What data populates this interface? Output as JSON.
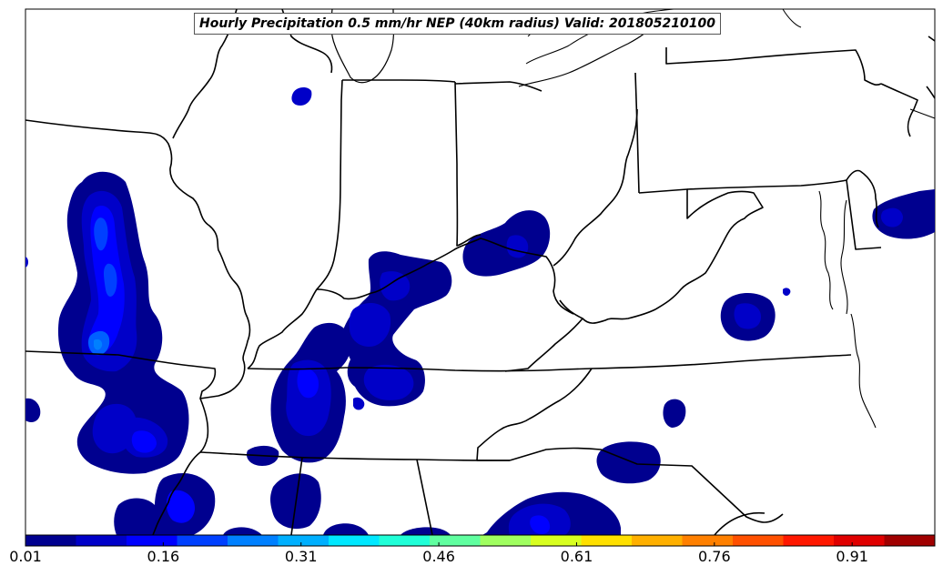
{
  "map": {
    "title": "Hourly Precipitation 0.5 mm/hr NEP (40km radius) Valid: 201805210100",
    "colors": {
      "outline": "#000000",
      "lake_outline": "#000000",
      "levels": [
        "#00008f",
        "#0000c8",
        "#0000ff",
        "#0040ff",
        "#0080ff",
        "#00b0ff",
        "#00e8ff",
        "#20ffd8",
        "#60ffa0",
        "#a0ff60",
        "#d8ff20",
        "#ffe000",
        "#ffb000",
        "#ff8000",
        "#ff5000",
        "#ff1800",
        "#e00000",
        "#a00000"
      ]
    },
    "colorbar": {
      "min": 0.01,
      "max": 1.0,
      "tick_labels": [
        "0.01",
        "0.16",
        "0.31",
        "0.46",
        "0.61",
        "0.76",
        "0.91"
      ],
      "tick_values": [
        0.01,
        0.16,
        0.31,
        0.46,
        0.61,
        0.76,
        0.91
      ]
    }
  }
}
